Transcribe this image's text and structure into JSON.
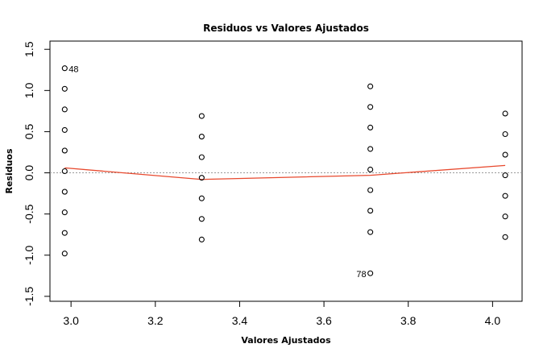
{
  "chart_data": {
    "type": "scatter",
    "title": "Residuos vs Valores Ajustados",
    "xlabel": "Valores Ajustados",
    "ylabel": "Residuos",
    "xlim": [
      2.95,
      4.07
    ],
    "ylim": [
      -1.56,
      1.6
    ],
    "xticks": [
      3.0,
      3.2,
      3.4,
      3.6,
      3.8,
      4.0
    ],
    "xtick_labels": [
      "3.0",
      "3.2",
      "3.4",
      "3.6",
      "3.8",
      "4.0"
    ],
    "yticks": [
      -1.5,
      -1.0,
      -0.5,
      0.0,
      0.5,
      1.0,
      1.5
    ],
    "ytick_labels": [
      "-1.5",
      "-1.0",
      "-0.5",
      "0.0",
      "0.5",
      "1.0",
      "1.5"
    ],
    "reference_line_y": 0,
    "points": [
      {
        "x": 2.985,
        "y": 1.27
      },
      {
        "x": 2.985,
        "y": 1.02
      },
      {
        "x": 2.985,
        "y": 0.77
      },
      {
        "x": 2.985,
        "y": 0.52
      },
      {
        "x": 2.985,
        "y": 0.27
      },
      {
        "x": 2.985,
        "y": 0.02
      },
      {
        "x": 2.985,
        "y": -0.23
      },
      {
        "x": 2.985,
        "y": -0.48
      },
      {
        "x": 2.985,
        "y": -0.73
      },
      {
        "x": 2.985,
        "y": -0.98
      },
      {
        "x": 3.31,
        "y": 0.69
      },
      {
        "x": 3.31,
        "y": 0.44
      },
      {
        "x": 3.31,
        "y": 0.19
      },
      {
        "x": 3.31,
        "y": -0.06
      },
      {
        "x": 3.31,
        "y": -0.31
      },
      {
        "x": 3.31,
        "y": -0.56
      },
      {
        "x": 3.31,
        "y": -0.81
      },
      {
        "x": 3.71,
        "y": 1.05
      },
      {
        "x": 3.71,
        "y": 0.8
      },
      {
        "x": 3.71,
        "y": 0.55
      },
      {
        "x": 3.71,
        "y": 0.29
      },
      {
        "x": 3.71,
        "y": 0.04
      },
      {
        "x": 3.71,
        "y": -0.21
      },
      {
        "x": 3.71,
        "y": -0.46
      },
      {
        "x": 3.71,
        "y": -0.72
      },
      {
        "x": 3.71,
        "y": -1.22
      },
      {
        "x": 4.03,
        "y": 0.72
      },
      {
        "x": 4.03,
        "y": 0.47
      },
      {
        "x": 4.03,
        "y": 0.22
      },
      {
        "x": 4.03,
        "y": -0.03
      },
      {
        "x": 4.03,
        "y": -0.28
      },
      {
        "x": 4.03,
        "y": -0.53
      },
      {
        "x": 4.03,
        "y": -0.78
      }
    ],
    "labeled_points": [
      {
        "label": "48",
        "x": 2.985,
        "y": 1.27,
        "side": "right"
      },
      {
        "label": "78",
        "x": 3.71,
        "y": -1.22,
        "side": "left"
      }
    ],
    "smooth_line": {
      "color": "#e8492e",
      "x": [
        2.985,
        3.31,
        3.71,
        4.03
      ],
      "y": [
        0.06,
        -0.08,
        -0.03,
        0.09
      ]
    },
    "point_color": "#000000",
    "reference_line_color": "#999999",
    "grid": false
  }
}
